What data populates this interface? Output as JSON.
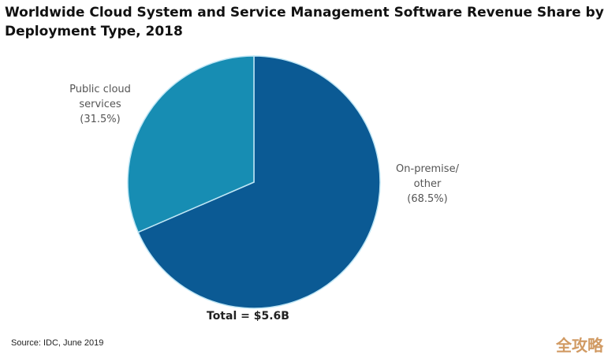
{
  "chart_data": {
    "type": "pie",
    "title": "Worldwide Cloud System and Service Management Software Revenue Share by Deployment Type, 2018",
    "slices": [
      {
        "label_lines": [
          "On-premise/",
          "other",
          "(68.5%)"
        ],
        "name": "On-premise/other",
        "value": 68.5,
        "color": "#0b5a94"
      },
      {
        "label_lines": [
          "Public cloud",
          "services",
          "(31.5%)"
        ],
        "name": "Public cloud services",
        "value": 31.5,
        "color": "#178db3"
      }
    ],
    "start_angle_deg": 0,
    "direction": "clockwise",
    "total_label": "Total = $5.6B"
  },
  "source": "Source: IDC, June 2019",
  "watermark": "全攻略"
}
